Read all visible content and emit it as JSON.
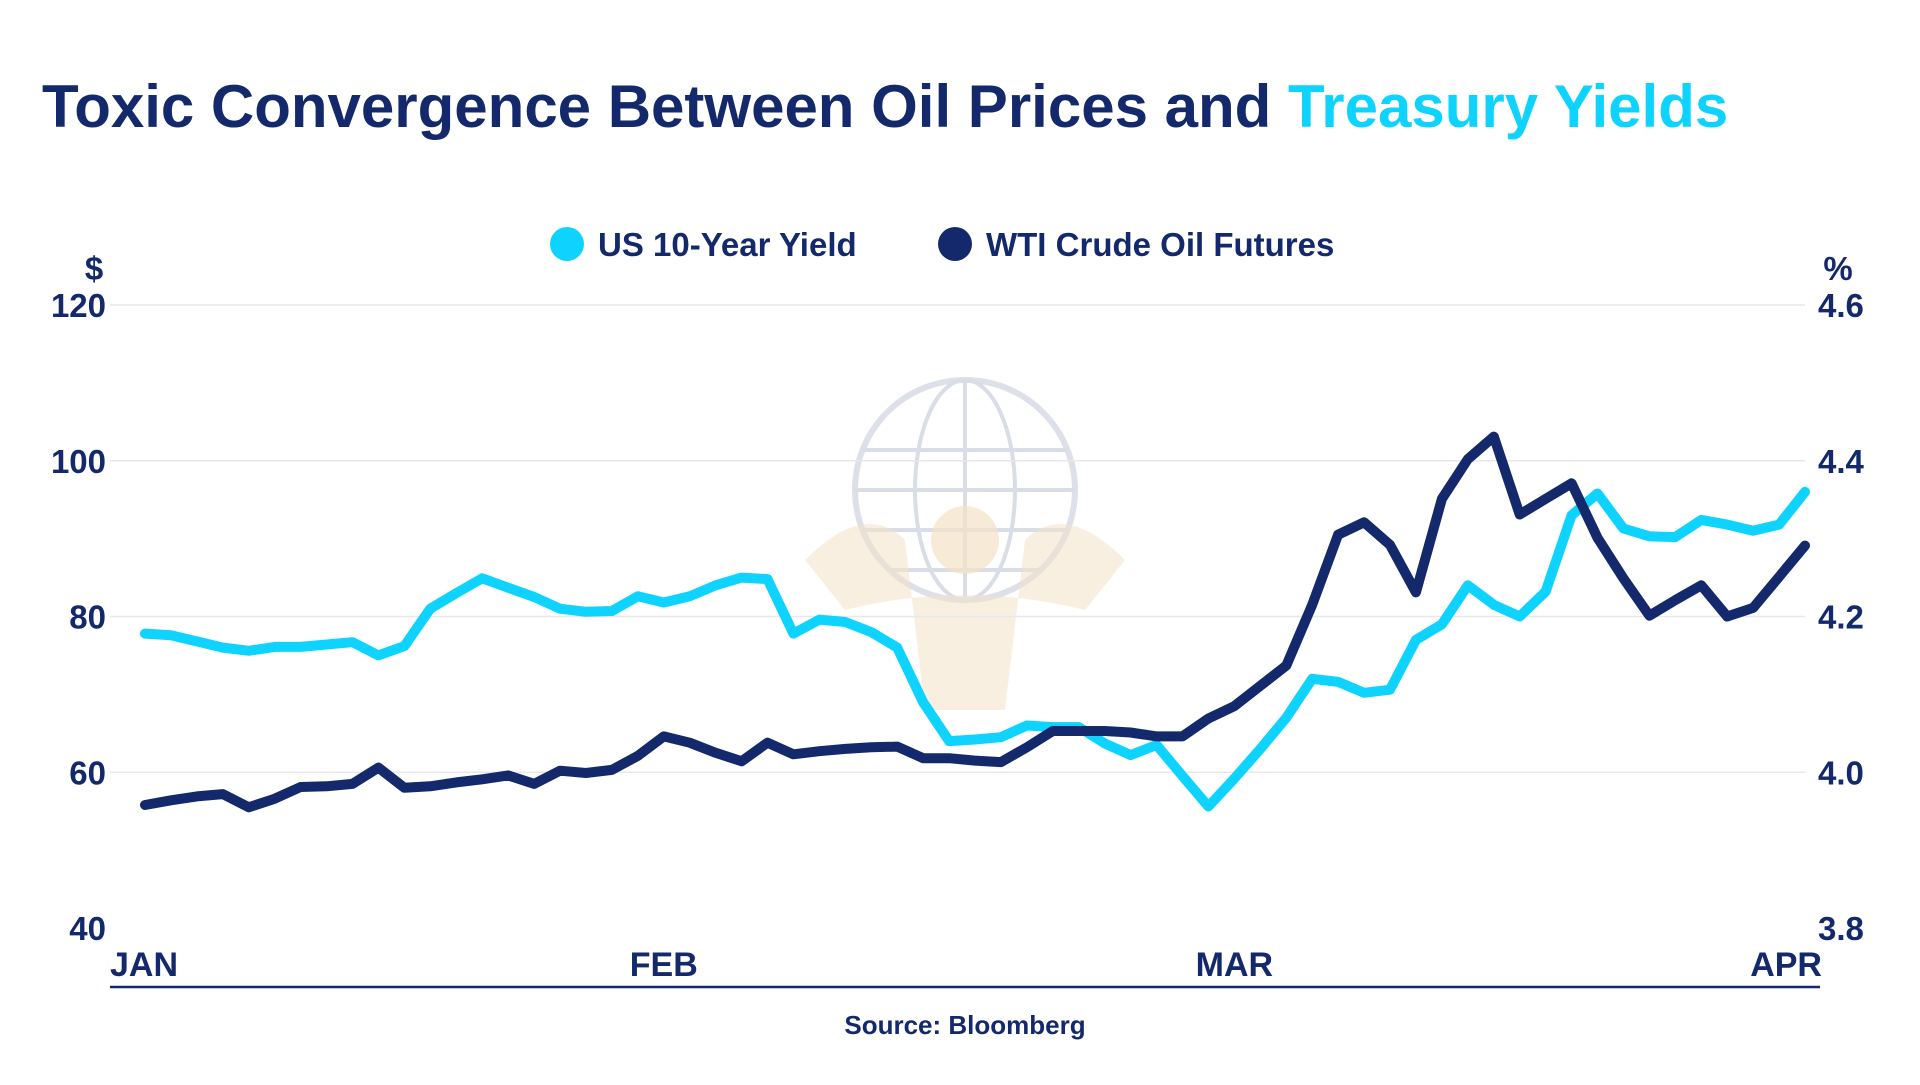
{
  "colors": {
    "navy": "#13296b",
    "cyan": "#0fd3ff",
    "grid": "#e8e8ec",
    "axis": "#13296b",
    "watermark": "#d9dde6",
    "watermark_accent": "#f3e2c8"
  },
  "watermark": {
    "name": "atlas-globe-logo"
  },
  "chart_data": {
    "type": "line",
    "title": "Toxic Convergence Between Oil Prices and Treasury Yields",
    "title_parts": [
      {
        "text": "Toxic Convergence Between Oil Prices and ",
        "color": "#13296b"
      },
      {
        "text": "Treasury Yields",
        "color": "#0fd3ff"
      }
    ],
    "source": "Source: Bloomberg",
    "x_labels": [
      "JAN",
      "FEB",
      "MAR",
      "APR"
    ],
    "x_label_positions": [
      0,
      20,
      42,
      64
    ],
    "x_range": [
      0,
      64
    ],
    "y_left": {
      "unit": "$",
      "range": [
        40,
        120
      ],
      "ticks": [
        40,
        60,
        80,
        100,
        120
      ]
    },
    "y_right": {
      "unit": "%",
      "range": [
        3.8,
        4.6
      ],
      "ticks": [
        "3.8",
        "4.0",
        "4.2",
        "4.4",
        "4.6"
      ]
    },
    "grid": true,
    "legend": "top-center",
    "series": [
      {
        "name": "US 10-Year Yield",
        "axis": "right",
        "color": "#0fd3ff",
        "points": [
          [
            0,
            4.178
          ],
          [
            1,
            4.176
          ],
          [
            2,
            4.168
          ],
          [
            3,
            4.16
          ],
          [
            4,
            4.156
          ],
          [
            5,
            4.161
          ],
          [
            6,
            4.161
          ],
          [
            7,
            4.164
          ],
          [
            8,
            4.167
          ],
          [
            9,
            4.15
          ],
          [
            10,
            4.162
          ],
          [
            11,
            4.21
          ],
          [
            12,
            4.23
          ],
          [
            13,
            4.249
          ],
          [
            14,
            4.237
          ],
          [
            15,
            4.225
          ],
          [
            16,
            4.21
          ],
          [
            17,
            4.206
          ],
          [
            18,
            4.207
          ],
          [
            19,
            4.226
          ],
          [
            20,
            4.218
          ],
          [
            21,
            4.226
          ],
          [
            22,
            4.24
          ],
          [
            23,
            4.25
          ],
          [
            24,
            4.248
          ],
          [
            25,
            4.178
          ],
          [
            26,
            4.196
          ],
          [
            27,
            4.193
          ],
          [
            28,
            4.18
          ],
          [
            29,
            4.16
          ],
          [
            30,
            4.09
          ],
          [
            31,
            4.04
          ],
          [
            32,
            4.042
          ],
          [
            33,
            4.045
          ],
          [
            34,
            4.06
          ],
          [
            35,
            4.058
          ],
          [
            36,
            4.058
          ],
          [
            37,
            4.037
          ],
          [
            38,
            4.022
          ],
          [
            39,
            4.035
          ],
          [
            40,
            3.995
          ],
          [
            41,
            3.956
          ],
          [
            42,
            3.992
          ],
          [
            43,
            4.03
          ],
          [
            44,
            4.07
          ],
          [
            45,
            4.12
          ],
          [
            46,
            4.116
          ],
          [
            47,
            4.102
          ],
          [
            48,
            4.106
          ],
          [
            49,
            4.17
          ],
          [
            50,
            4.19
          ],
          [
            51,
            4.24
          ],
          [
            52,
            4.215
          ],
          [
            53,
            4.2
          ],
          [
            54,
            4.232
          ],
          [
            55,
            4.33
          ],
          [
            56,
            4.358
          ],
          [
            57,
            4.313
          ],
          [
            58,
            4.303
          ],
          [
            59,
            4.302
          ],
          [
            60,
            4.324
          ],
          [
            61,
            4.318
          ],
          [
            62,
            4.31
          ],
          [
            63,
            4.318
          ],
          [
            64,
            4.36
          ]
        ]
      },
      {
        "name": "WTI Crude Oil Futures",
        "axis": "left",
        "color": "#13296b",
        "points": [
          [
            0,
            55.8
          ],
          [
            1,
            56.4
          ],
          [
            2,
            56.9
          ],
          [
            3,
            57.2
          ],
          [
            4,
            55.5
          ],
          [
            5,
            56.6
          ],
          [
            6,
            58.1
          ],
          [
            7,
            58.2
          ],
          [
            8,
            58.5
          ],
          [
            9,
            60.6
          ],
          [
            10,
            58.0
          ],
          [
            11,
            58.2
          ],
          [
            12,
            58.7
          ],
          [
            13,
            59.1
          ],
          [
            14,
            59.6
          ],
          [
            15,
            58.5
          ],
          [
            16,
            60.2
          ],
          [
            17,
            59.9
          ],
          [
            18,
            60.3
          ],
          [
            19,
            62.1
          ],
          [
            20,
            64.6
          ],
          [
            21,
            63.8
          ],
          [
            22,
            62.5
          ],
          [
            23,
            61.4
          ],
          [
            24,
            63.8
          ],
          [
            25,
            62.3
          ],
          [
            26,
            62.7
          ],
          [
            27,
            63.0
          ],
          [
            28,
            63.2
          ],
          [
            29,
            63.3
          ],
          [
            30,
            61.8
          ],
          [
            31,
            61.8
          ],
          [
            32,
            61.5
          ],
          [
            33,
            61.3
          ],
          [
            34,
            63.2
          ],
          [
            35,
            65.3
          ],
          [
            36,
            65.3
          ],
          [
            37,
            65.3
          ],
          [
            38,
            65.1
          ],
          [
            39,
            64.6
          ],
          [
            40,
            64.6
          ],
          [
            41,
            66.9
          ],
          [
            42,
            68.5
          ],
          [
            43,
            71.1
          ],
          [
            44,
            73.7
          ],
          [
            45,
            81.5
          ],
          [
            46,
            90.5
          ],
          [
            47,
            92.1
          ],
          [
            48,
            89.2
          ],
          [
            49,
            83.1
          ],
          [
            50,
            95.1
          ],
          [
            51,
            100.2
          ],
          [
            52,
            103.1
          ],
          [
            53,
            93.1
          ],
          [
            54,
            95.1
          ],
          [
            55,
            97.1
          ],
          [
            56,
            90.1
          ],
          [
            57,
            84.9
          ],
          [
            58,
            80.1
          ],
          [
            59,
            82.1
          ],
          [
            60,
            84.0
          ],
          [
            61,
            80.0
          ],
          [
            62,
            81.1
          ],
          [
            63,
            85.1
          ],
          [
            64,
            89.1
          ]
        ]
      }
    ]
  }
}
